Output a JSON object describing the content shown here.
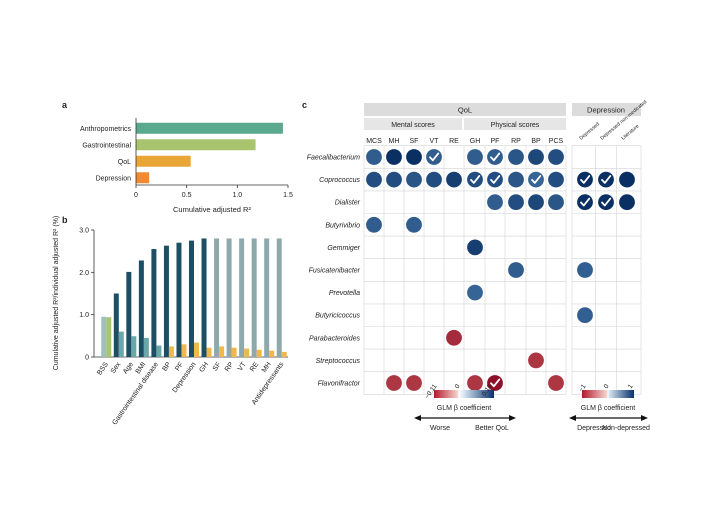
{
  "panel_labels": {
    "a": "a",
    "b": "b",
    "c": "c"
  },
  "chart_data": [
    {
      "panel": "a",
      "type": "bar",
      "orientation": "horizontal",
      "categories": [
        "Anthropometrics",
        "Gastrointestinal",
        "QoL",
        "Depression"
      ],
      "values": [
        1.45,
        1.18,
        0.54,
        0.13
      ],
      "colors": [
        "#5aa98f",
        "#a9c46f",
        "#e9a637",
        "#f08a34"
      ],
      "xlabel": "Cumulative adjusted R²",
      "xlim": [
        0,
        1.5
      ],
      "xticks": [
        "0",
        "0.5",
        "1.0",
        "1.5"
      ]
    },
    {
      "panel": "b",
      "type": "bar",
      "categories": [
        "BSS",
        "Sex",
        "Age",
        "BMI",
        "Gastrointestinal disease",
        "BP",
        "PF",
        "Depression",
        "GH",
        "SF",
        "RP",
        "VT",
        "RE",
        "MH",
        "Antidepressants"
      ],
      "series": [
        {
          "values": [
            0.95,
            1.5,
            2.01,
            2.28,
            2.55,
            2.63,
            2.7,
            2.75,
            2.8,
            2.8,
            2.8,
            2.8,
            2.8,
            2.8,
            2.8
          ]
        },
        {
          "values": [
            0.94,
            0.6,
            0.49,
            0.45,
            0.27,
            0.25,
            0.3,
            0.34,
            0.22,
            0.25,
            0.22,
            0.2,
            0.17,
            0.15,
            0.12
          ]
        }
      ],
      "bar_colors": [
        "#9fbfbb",
        "#1c4f63",
        "#1c4f63",
        "#1c4f63",
        "#1c4f63",
        "#1c4f63",
        "#1c4f63",
        "#1c4f63",
        "#1c4f63",
        "#8ea8ab",
        "#8ea8ab",
        "#8ea8ab",
        "#8ea8ab",
        "#8ea8ab",
        "#8ea8ab"
      ],
      "bar2_colors": [
        "#a9c46f",
        "#6aa7a8",
        "#6aa7a8",
        "#6aa7a8",
        "#6aa7a8",
        "#f0b84a",
        "#f0b84a",
        "#f0b84a",
        "#f0b84a",
        "#f0b84a",
        "#f0b84a",
        "#f0b84a",
        "#f0b84a",
        "#f0b84a",
        "#f0b84a"
      ],
      "ylabel": "Cumulative adjusted R²/individual adjusted R² (%)",
      "ylim": [
        0,
        3.0
      ],
      "yticks": [
        "0",
        "1.0",
        "2.0",
        "3.0"
      ]
    },
    {
      "panel": "c",
      "type": "heatmap",
      "group_headers": {
        "qol": "QoL",
        "depression": "Depression",
        "mental": "Mental scores",
        "physical": "Physical scores"
      },
      "columns_qol": [
        "MCS",
        "MH",
        "SF",
        "VT",
        "RE",
        "GH",
        "PF",
        "RP",
        "BP",
        "PCS"
      ],
      "columns_depression": [
        "Depressed",
        "Depressed non-medicated",
        "Literature"
      ],
      "rows": [
        "Faecalibacterium",
        "Coprococcus",
        "Dialister",
        "Butyrivibrio",
        "Gemmiger",
        "Fusicatenibacter",
        "Prevotella",
        "Butyricicoccus",
        "Parabacteroides",
        "Streptococcus",
        "Flavonifractor"
      ],
      "cells": [
        {
          "r": 0,
          "c": 0,
          "v": 0.1
        },
        {
          "r": 0,
          "c": 1,
          "v": 0.16
        },
        {
          "r": 0,
          "c": 2,
          "v": 0.16
        },
        {
          "r": 0,
          "c": 3,
          "v": 0.1,
          "check": true
        },
        {
          "r": 0,
          "c": 5,
          "v": 0.1
        },
        {
          "r": 0,
          "c": 6,
          "v": 0.1,
          "check": true
        },
        {
          "r": 0,
          "c": 7,
          "v": 0.11
        },
        {
          "r": 0,
          "c": 8,
          "v": 0.13
        },
        {
          "r": 0,
          "c": 9,
          "v": 0.12
        },
        {
          "r": 1,
          "c": 0,
          "v": 0.12
        },
        {
          "r": 1,
          "c": 1,
          "v": 0.12
        },
        {
          "r": 1,
          "c": 2,
          "v": 0.11
        },
        {
          "r": 1,
          "c": 3,
          "v": 0.12
        },
        {
          "r": 1,
          "c": 4,
          "v": 0.14
        },
        {
          "r": 1,
          "c": 5,
          "v": 0.12,
          "check": true
        },
        {
          "r": 1,
          "c": 6,
          "v": 0.12,
          "check": true
        },
        {
          "r": 1,
          "c": 7,
          "v": 0.11
        },
        {
          "r": 1,
          "c": 8,
          "v": 0.09,
          "check": true
        },
        {
          "r": 1,
          "c": 9,
          "v": 0.12
        },
        {
          "r": 2,
          "c": 6,
          "v": 0.1
        },
        {
          "r": 2,
          "c": 7,
          "v": 0.12
        },
        {
          "r": 2,
          "c": 8,
          "v": 0.13
        },
        {
          "r": 2,
          "c": 9,
          "v": 0.11
        },
        {
          "r": 3,
          "c": 0,
          "v": 0.1
        },
        {
          "r": 3,
          "c": 2,
          "v": 0.1
        },
        {
          "r": 4,
          "c": 5,
          "v": 0.14
        },
        {
          "r": 5,
          "c": 7,
          "v": 0.1
        },
        {
          "r": 6,
          "c": 5,
          "v": 0.09
        },
        {
          "r": 8,
          "c": 4,
          "v": -0.08
        },
        {
          "r": 9,
          "c": 8,
          "v": -0.07
        },
        {
          "r": 10,
          "c": 1,
          "v": -0.07
        },
        {
          "r": 10,
          "c": 2,
          "v": -0.07
        },
        {
          "r": 10,
          "c": 5,
          "v": -0.07
        },
        {
          "r": 10,
          "c": 6,
          "v": -0.11,
          "check": true
        },
        {
          "r": 10,
          "c": 9,
          "v": -0.07
        }
      ],
      "cells_depression": [
        {
          "r": 1,
          "c": 0,
          "v": 1,
          "check": true
        },
        {
          "r": 1,
          "c": 1,
          "v": 1,
          "check": true
        },
        {
          "r": 1,
          "c": 2,
          "v": 1
        },
        {
          "r": 2,
          "c": 0,
          "v": 1,
          "check": true
        },
        {
          "r": 2,
          "c": 1,
          "v": 1,
          "check": true
        },
        {
          "r": 2,
          "c": 2,
          "v": 1
        },
        {
          "r": 5,
          "c": 0,
          "v": 0.6
        },
        {
          "r": 7,
          "c": 0,
          "v": 0.6
        }
      ],
      "legend_qol": {
        "min_label": "−0.11",
        "zero_label": "0",
        "max_label": "0.16",
        "title": "GLM β coefficient",
        "left_label": "Worse",
        "right_label": "Better QoL",
        "vmin": -0.11,
        "vmax": 0.16
      },
      "legend_depression": {
        "min_label": "−1",
        "zero_label": "0",
        "max_label": "1",
        "title": "GLM β coefficient",
        "left_label": "Depressed",
        "right_label": "Non-depressed",
        "vmin": -1,
        "vmax": 1
      }
    }
  ]
}
